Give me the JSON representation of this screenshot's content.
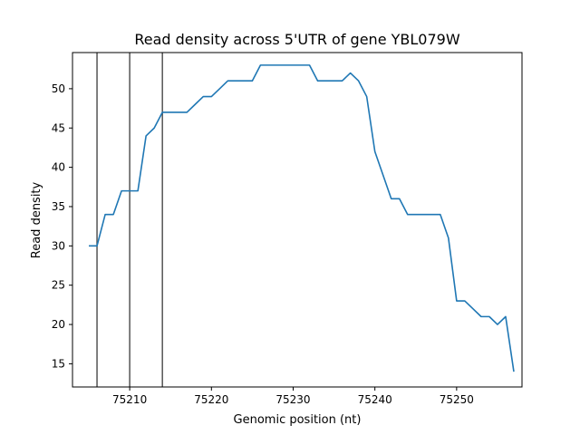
{
  "chart_data": {
    "type": "line",
    "title": "Read density across 5'UTR of gene YBL079W",
    "xlabel": "Genomic position (nt)",
    "ylabel": "Read density",
    "xlim": [
      75203,
      75258
    ],
    "ylim": [
      12.05,
      54.6
    ],
    "xticks": [
      75210,
      75220,
      75230,
      75240,
      75250
    ],
    "yticks": [
      15,
      20,
      25,
      30,
      35,
      40,
      45,
      50
    ],
    "grid": false,
    "vlines": [
      75206,
      75210,
      75214
    ],
    "series": [
      {
        "color": "#1f77b4",
        "x": [
          75205,
          75206,
          75207,
          75208,
          75209,
          75210,
          75211,
          75212,
          75213,
          75214,
          75215,
          75216,
          75217,
          75218,
          75219,
          75220,
          75221,
          75222,
          75223,
          75224,
          75225,
          75226,
          75227,
          75228,
          75229,
          75230,
          75231,
          75232,
          75233,
          75234,
          75235,
          75236,
          75237,
          75238,
          75239,
          75240,
          75241,
          75242,
          75243,
          75244,
          75245,
          75246,
          75247,
          75248,
          75249,
          75250,
          75251,
          75252,
          75253,
          75254,
          75255,
          75256,
          75257
        ],
        "y": [
          30,
          30,
          34,
          34,
          37,
          37,
          37,
          44,
          45,
          47,
          47,
          47,
          47,
          48,
          49,
          49,
          50,
          51,
          51,
          51,
          51,
          53,
          53,
          53,
          53,
          53,
          53,
          53,
          51,
          51,
          51,
          51,
          52,
          51,
          49,
          42,
          39,
          36,
          36,
          34,
          34,
          34,
          34,
          34,
          31,
          23,
          23,
          22,
          21,
          21,
          20,
          21,
          14
        ]
      }
    ]
  }
}
